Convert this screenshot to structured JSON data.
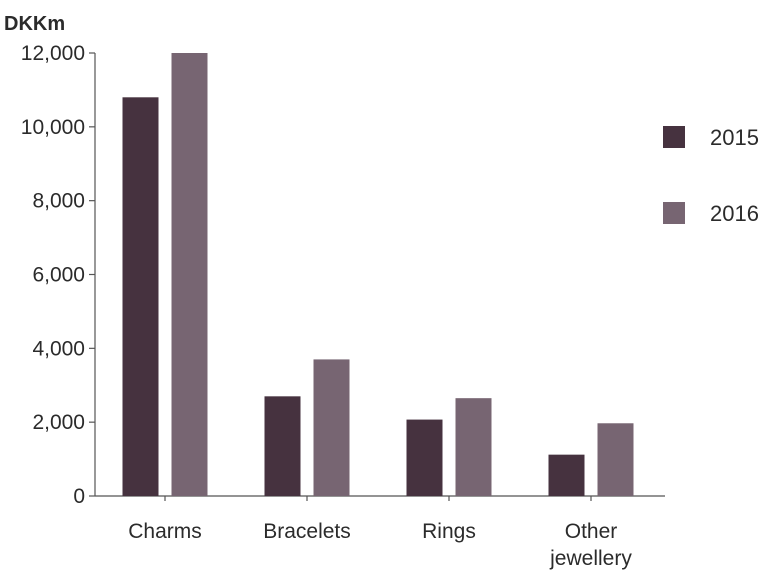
{
  "chart_data": {
    "type": "bar",
    "title": "",
    "unit_label": "DKKm",
    "xlabel": "",
    "ylabel": "",
    "categories": [
      [
        "Charms"
      ],
      [
        "Bracelets"
      ],
      [
        "Rings"
      ],
      [
        "Other",
        "jewellery"
      ]
    ],
    "series": [
      {
        "name": "2015",
        "color": "#46323f",
        "values": [
          10800,
          2700,
          2070,
          1120
        ]
      },
      {
        "name": "2016",
        "color": "#776572",
        "values": [
          12000,
          3700,
          2650,
          1970
        ]
      }
    ],
    "ylim": [
      0,
      12000
    ],
    "yticks": [
      0,
      2000,
      4000,
      6000,
      8000,
      10000,
      12000
    ],
    "ytick_labels": [
      "0",
      "2,000",
      "4,000",
      "6,000",
      "8,000",
      "10,000",
      "12,000"
    ],
    "grid": false,
    "legend_position": "right"
  }
}
